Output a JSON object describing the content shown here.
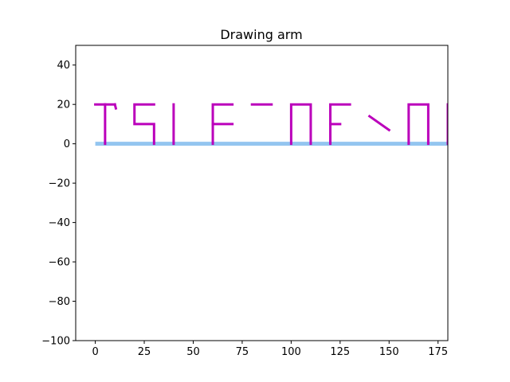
{
  "chart_data": {
    "type": "line",
    "title": "Drawing arm",
    "xlabel": "",
    "ylabel": "",
    "xlim": [
      -10,
      180
    ],
    "ylim": [
      -100,
      50
    ],
    "xticks": [
      0,
      25,
      50,
      75,
      100,
      125,
      150,
      175
    ],
    "yticks": [
      -100,
      -80,
      -60,
      -40,
      -20,
      0,
      20,
      40
    ],
    "xtick_labels": [
      "0",
      "25",
      "50",
      "75",
      "100",
      "125",
      "150",
      "175"
    ],
    "ytick_labels": [
      "−100",
      "−80",
      "−60",
      "−40",
      "−20",
      "0",
      "20",
      "40"
    ],
    "grid": false,
    "series": [
      {
        "role": "arm baseline",
        "color": "#93c5f0",
        "segments": [
          [
            [
              0,
              0
            ],
            [
              180,
              0
            ]
          ]
        ]
      },
      {
        "role": "pen trace",
        "color": "#bb00bb",
        "segments": [
          [
            [
              0,
              20
            ],
            [
              10,
              20
            ]
          ],
          [
            [
              10,
              20
            ],
            [
              10.5,
              18
            ]
          ],
          [
            [
              5,
              20
            ],
            [
              5,
              0
            ]
          ],
          [
            [
              30,
              20
            ],
            [
              20,
              20
            ],
            [
              20,
              10
            ],
            [
              30,
              10
            ],
            [
              30,
              0
            ]
          ],
          [
            [
              40,
              20
            ],
            [
              40,
              0
            ]
          ],
          [
            [
              70,
              20
            ],
            [
              60,
              20
            ],
            [
              60,
              0
            ]
          ],
          [
            [
              60,
              10
            ],
            [
              70,
              10
            ]
          ],
          [
            [
              80,
              20
            ],
            [
              90,
              20
            ]
          ],
          [
            [
              100,
              0
            ],
            [
              100,
              20
            ],
            [
              110,
              20
            ],
            [
              110,
              0
            ]
          ],
          [
            [
              130,
              20
            ],
            [
              120,
              20
            ],
            [
              120,
              0
            ]
          ],
          [
            [
              120,
              10
            ],
            [
              125,
              10
            ]
          ],
          [
            [
              140,
              14
            ],
            [
              150,
              7
            ]
          ],
          [
            [
              160,
              0
            ],
            [
              160,
              20
            ],
            [
              170,
              20
            ],
            [
              170,
              0
            ]
          ],
          [
            [
              180,
              20
            ],
            [
              180,
              0
            ]
          ]
        ]
      }
    ]
  }
}
